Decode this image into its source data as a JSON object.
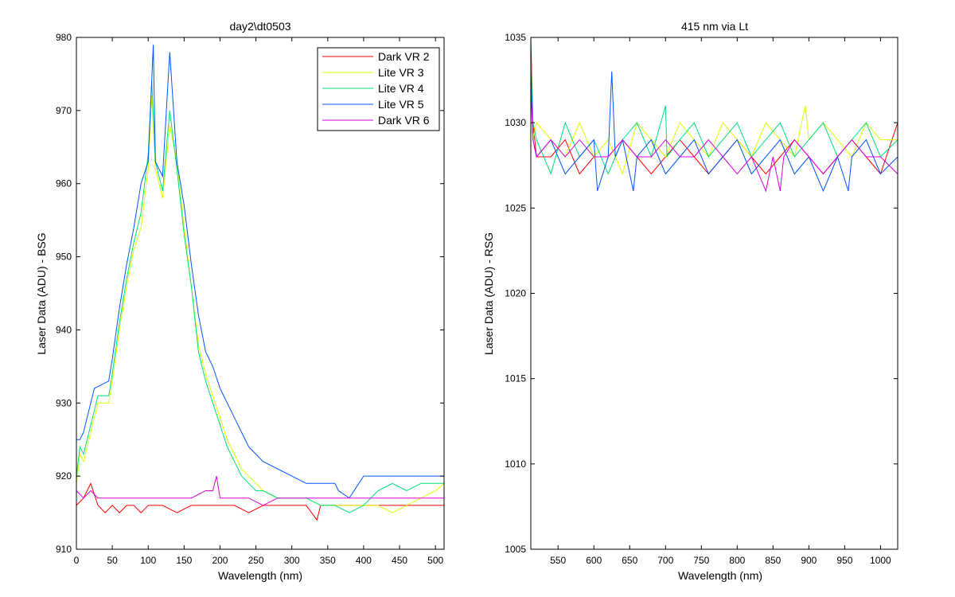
{
  "colors": {
    "background": "#ffffff",
    "axes": "#000000",
    "series": [
      "#ff0000",
      "#ddff00",
      "#00e07a",
      "#0055ff",
      "#dd00dd"
    ]
  },
  "chart_data": [
    {
      "type": "line",
      "title": "day2\\dt0503",
      "xlabel": "Wavelength (nm)",
      "ylabel": "Laser Data (ADU) - BSG",
      "xlim": [
        0,
        512
      ],
      "ylim": [
        910,
        980
      ],
      "xticks": [
        0,
        50,
        100,
        150,
        200,
        250,
        300,
        350,
        400,
        450,
        500
      ],
      "yticks": [
        910,
        920,
        930,
        940,
        950,
        960,
        970,
        980
      ],
      "grid": false,
      "legend_position": "top-right",
      "series": [
        {
          "name": "Dark VR 2",
          "x": [
            0,
            10,
            20,
            30,
            40,
            50,
            60,
            70,
            80,
            90,
            100,
            120,
            140,
            160,
            180,
            200,
            220,
            240,
            260,
            280,
            300,
            320,
            335,
            340,
            360,
            380,
            400,
            420,
            440,
            460,
            480,
            500,
            512
          ],
          "y": [
            916,
            917,
            919,
            916,
            915,
            916,
            915,
            916,
            916,
            915,
            916,
            916,
            915,
            916,
            916,
            916,
            916,
            915,
            916,
            916,
            916,
            916,
            914,
            916,
            916,
            916,
            916,
            916,
            916,
            916,
            916,
            916,
            916
          ]
        },
        {
          "name": "Lite VR 3",
          "x": [
            0,
            5,
            10,
            20,
            30,
            45,
            50,
            60,
            70,
            80,
            90,
            100,
            105,
            110,
            120,
            130,
            140,
            150,
            160,
            170,
            180,
            190,
            200,
            210,
            220,
            230,
            240,
            250,
            260,
            280,
            300,
            320,
            340,
            360,
            380,
            400,
            420,
            440,
            460,
            480,
            500,
            512
          ],
          "y": [
            919,
            923,
            922,
            926,
            930,
            930,
            933,
            940,
            946,
            951,
            954,
            962,
            972,
            962,
            958,
            968,
            963,
            954,
            946,
            938,
            934,
            931,
            928,
            925,
            923,
            921,
            920,
            919,
            918,
            917,
            917,
            917,
            916,
            916,
            916,
            916,
            916,
            915,
            916,
            917,
            918,
            919
          ]
        },
        {
          "name": "Lite VR 4",
          "x": [
            0,
            5,
            10,
            20,
            30,
            45,
            50,
            60,
            70,
            80,
            90,
            100,
            105,
            110,
            120,
            130,
            140,
            150,
            160,
            170,
            180,
            190,
            200,
            210,
            220,
            230,
            240,
            250,
            260,
            280,
            300,
            320,
            340,
            360,
            380,
            400,
            420,
            440,
            460,
            480,
            500,
            512
          ],
          "y": [
            920,
            924,
            923,
            927,
            931,
            931,
            934,
            941,
            947,
            952,
            956,
            964,
            974,
            963,
            959,
            970,
            962,
            953,
            946,
            937,
            933,
            930,
            927,
            924,
            922,
            920,
            919,
            918,
            918,
            917,
            917,
            917,
            916,
            916,
            915,
            916,
            918,
            919,
            918,
            919,
            919,
            919
          ]
        },
        {
          "name": "Lite VR 5",
          "x": [
            0,
            5,
            10,
            20,
            25,
            45,
            50,
            60,
            70,
            80,
            90,
            100,
            107,
            110,
            120,
            130,
            140,
            150,
            160,
            170,
            180,
            190,
            200,
            210,
            220,
            230,
            240,
            250,
            260,
            280,
            300,
            320,
            340,
            360,
            365,
            380,
            400,
            420,
            440,
            460,
            480,
            500,
            512
          ],
          "y": [
            925,
            925,
            926,
            930,
            932,
            933,
            936,
            943,
            949,
            954,
            960,
            963,
            979,
            963,
            961,
            978,
            963,
            957,
            949,
            942,
            937,
            935,
            932,
            930,
            928,
            926,
            924,
            923,
            922,
            921,
            920,
            919,
            919,
            919,
            918,
            917,
            920,
            920,
            920,
            920,
            920,
            920,
            920
          ]
        },
        {
          "name": "Dark VR 6",
          "x": [
            0,
            10,
            20,
            30,
            40,
            50,
            60,
            80,
            100,
            120,
            140,
            160,
            180,
            190,
            195,
            200,
            220,
            240,
            260,
            280,
            300,
            320,
            340,
            360,
            380,
            400,
            420,
            440,
            460,
            480,
            500,
            512
          ],
          "y": [
            918,
            917,
            918,
            917,
            917,
            917,
            917,
            917,
            917,
            917,
            917,
            917,
            918,
            918,
            920,
            917,
            917,
            917,
            916,
            917,
            917,
            917,
            917,
            917,
            917,
            917,
            917,
            917,
            917,
            917,
            917,
            917
          ]
        }
      ]
    },
    {
      "type": "line",
      "title": "415 nm via Lt",
      "xlabel": "Wavelength (nm)",
      "ylabel": "Laser Data (ADU) - RSG",
      "xlim": [
        512,
        1024
      ],
      "ylim": [
        1005,
        1035
      ],
      "xticks": [
        550,
        600,
        650,
        700,
        750,
        800,
        850,
        900,
        950,
        1000
      ],
      "yticks": [
        1005,
        1010,
        1015,
        1020,
        1025,
        1030,
        1035
      ],
      "grid": false,
      "series": [
        {
          "x": [
            512,
            515,
            520,
            540,
            560,
            580,
            600,
            620,
            640,
            660,
            680,
            700,
            720,
            740,
            760,
            780,
            800,
            820,
            840,
            860,
            880,
            900,
            920,
            940,
            960,
            980,
            1000,
            1024
          ],
          "y": [
            1035,
            1030,
            1028,
            1028,
            1029,
            1027,
            1028,
            1028,
            1029,
            1028,
            1027,
            1028,
            1029,
            1028,
            1027,
            1028,
            1029,
            1028,
            1027,
            1028,
            1029,
            1028,
            1027,
            1028,
            1029,
            1028,
            1027,
            1030
          ]
        },
        {
          "x": [
            512,
            515,
            520,
            540,
            560,
            580,
            600,
            620,
            640,
            660,
            680,
            700,
            720,
            740,
            760,
            780,
            800,
            820,
            840,
            860,
            880,
            895,
            900,
            920,
            940,
            960,
            980,
            1000,
            1024
          ],
          "y": [
            1033,
            1029,
            1030,
            1029,
            1028,
            1030,
            1028,
            1029,
            1027,
            1030,
            1029,
            1028,
            1030,
            1029,
            1028,
            1030,
            1029,
            1028,
            1030,
            1029,
            1028,
            1031,
            1029,
            1030,
            1029,
            1028,
            1030,
            1029,
            1029
          ]
        },
        {
          "x": [
            512,
            515,
            520,
            540,
            560,
            580,
            600,
            620,
            640,
            660,
            680,
            700,
            702,
            720,
            740,
            760,
            780,
            800,
            820,
            840,
            860,
            880,
            900,
            920,
            940,
            960,
            980,
            1000,
            1024
          ],
          "y": [
            1034,
            1030,
            1029,
            1027,
            1030,
            1028,
            1029,
            1027,
            1029,
            1030,
            1028,
            1031,
            1028,
            1029,
            1030,
            1028,
            1029,
            1030,
            1028,
            1029,
            1030,
            1028,
            1029,
            1030,
            1028,
            1029,
            1030,
            1028,
            1029
          ]
        },
        {
          "x": [
            512,
            515,
            520,
            540,
            560,
            580,
            600,
            605,
            620,
            625,
            630,
            640,
            655,
            660,
            680,
            700,
            720,
            740,
            760,
            780,
            800,
            820,
            840,
            860,
            880,
            900,
            920,
            940,
            955,
            960,
            980,
            1000,
            1024
          ],
          "y": [
            1033,
            1029,
            1028,
            1029,
            1027,
            1028,
            1029,
            1026,
            1028,
            1033,
            1028,
            1029,
            1026,
            1028,
            1029,
            1027,
            1028,
            1029,
            1027,
            1028,
            1029,
            1027,
            1028,
            1029,
            1027,
            1028,
            1026,
            1028,
            1026,
            1028,
            1029,
            1027,
            1028
          ]
        },
        {
          "x": [
            512,
            515,
            520,
            540,
            560,
            580,
            600,
            620,
            640,
            660,
            680,
            700,
            720,
            740,
            760,
            780,
            800,
            820,
            840,
            850,
            860,
            865,
            880,
            900,
            920,
            940,
            960,
            980,
            1000,
            1024
          ],
          "y": [
            1032,
            1029,
            1028,
            1029,
            1028,
            1029,
            1028,
            1028,
            1029,
            1028,
            1028,
            1029,
            1028,
            1028,
            1029,
            1028,
            1027,
            1028,
            1026,
            1028,
            1026,
            1028,
            1029,
            1028,
            1027,
            1028,
            1029,
            1028,
            1028,
            1027
          ]
        }
      ]
    }
  ]
}
